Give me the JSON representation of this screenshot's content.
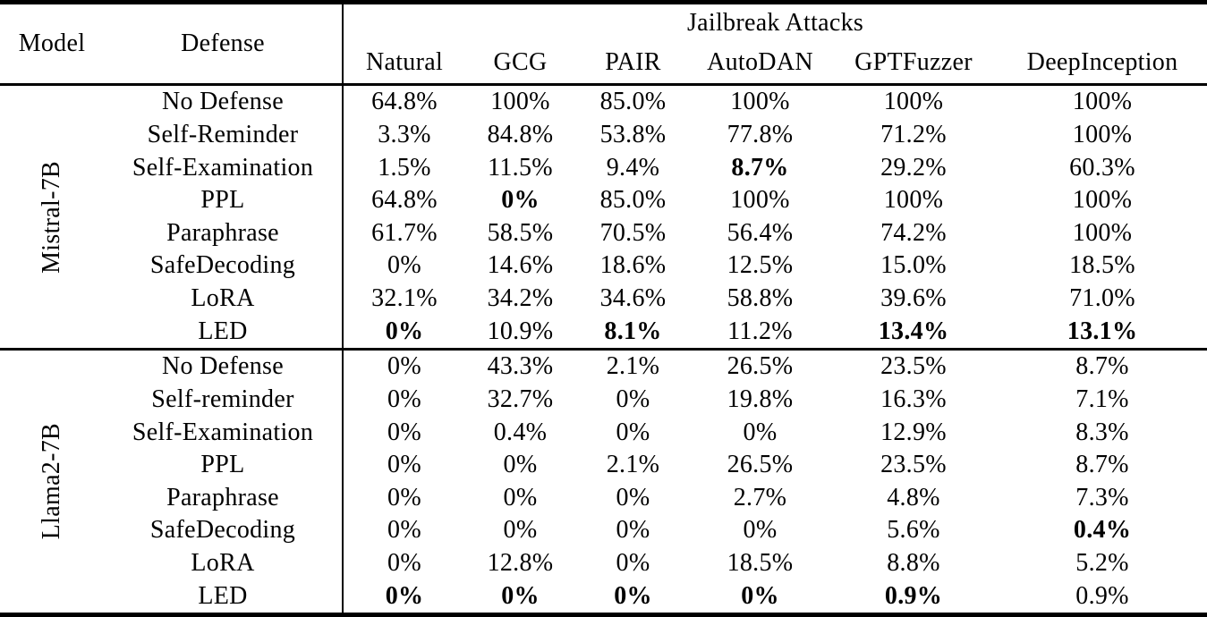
{
  "table": {
    "headers": {
      "model": "Model",
      "defense": "Defense",
      "attack_group": "Jailbreak Attacks",
      "attacks": [
        "Natural",
        "GCG",
        "PAIR",
        "AutoDAN",
        "GPTFuzzer",
        "DeepInception"
      ]
    },
    "colors": {
      "text": "#000000",
      "background": "#ffffff",
      "rule": "#000000"
    },
    "sections": [
      {
        "model": "Mistral-7B",
        "rows": [
          {
            "defense": "No Defense",
            "values": [
              {
                "text": "64.8%",
                "bold": false
              },
              {
                "text": "100%",
                "bold": false
              },
              {
                "text": "85.0%",
                "bold": false
              },
              {
                "text": "100%",
                "bold": false
              },
              {
                "text": "100%",
                "bold": false
              },
              {
                "text": "100%",
                "bold": false
              }
            ]
          },
          {
            "defense": "Self-Reminder",
            "values": [
              {
                "text": "3.3%",
                "bold": false
              },
              {
                "text": "84.8%",
                "bold": false
              },
              {
                "text": "53.8%",
                "bold": false
              },
              {
                "text": "77.8%",
                "bold": false
              },
              {
                "text": "71.2%",
                "bold": false
              },
              {
                "text": "100%",
                "bold": false
              }
            ]
          },
          {
            "defense": "Self-Examination",
            "values": [
              {
                "text": "1.5%",
                "bold": false
              },
              {
                "text": "11.5%",
                "bold": false
              },
              {
                "text": "9.4%",
                "bold": false
              },
              {
                "text": "8.7%",
                "bold": true
              },
              {
                "text": "29.2%",
                "bold": false
              },
              {
                "text": "60.3%",
                "bold": false
              }
            ]
          },
          {
            "defense": "PPL",
            "values": [
              {
                "text": "64.8%",
                "bold": false
              },
              {
                "text": "0%",
                "bold": true
              },
              {
                "text": "85.0%",
                "bold": false
              },
              {
                "text": "100%",
                "bold": false
              },
              {
                "text": "100%",
                "bold": false
              },
              {
                "text": "100%",
                "bold": false
              }
            ]
          },
          {
            "defense": "Paraphrase",
            "values": [
              {
                "text": "61.7%",
                "bold": false
              },
              {
                "text": "58.5%",
                "bold": false
              },
              {
                "text": "70.5%",
                "bold": false
              },
              {
                "text": "56.4%",
                "bold": false
              },
              {
                "text": "74.2%",
                "bold": false
              },
              {
                "text": "100%",
                "bold": false
              }
            ]
          },
          {
            "defense": "SafeDecoding",
            "values": [
              {
                "text": "0%",
                "bold": false
              },
              {
                "text": "14.6%",
                "bold": false
              },
              {
                "text": "18.6%",
                "bold": false
              },
              {
                "text": "12.5%",
                "bold": false
              },
              {
                "text": "15.0%",
                "bold": false
              },
              {
                "text": "18.5%",
                "bold": false
              }
            ]
          },
          {
            "defense": "LoRA",
            "values": [
              {
                "text": "32.1%",
                "bold": false
              },
              {
                "text": "34.2%",
                "bold": false
              },
              {
                "text": "34.6%",
                "bold": false
              },
              {
                "text": "58.8%",
                "bold": false
              },
              {
                "text": "39.6%",
                "bold": false
              },
              {
                "text": "71.0%",
                "bold": false
              }
            ]
          },
          {
            "defense": "LED",
            "values": [
              {
                "text": "0%",
                "bold": true
              },
              {
                "text": "10.9%",
                "bold": false
              },
              {
                "text": "8.1%",
                "bold": true
              },
              {
                "text": "11.2%",
                "bold": false
              },
              {
                "text": "13.4%",
                "bold": true
              },
              {
                "text": "13.1%",
                "bold": true
              }
            ]
          }
        ]
      },
      {
        "model": "Llama2-7B",
        "rows": [
          {
            "defense": "No Defense",
            "values": [
              {
                "text": "0%",
                "bold": false
              },
              {
                "text": "43.3%",
                "bold": false
              },
              {
                "text": "2.1%",
                "bold": false
              },
              {
                "text": "26.5%",
                "bold": false
              },
              {
                "text": "23.5%",
                "bold": false
              },
              {
                "text": "8.7%",
                "bold": false
              }
            ]
          },
          {
            "defense": "Self-reminder",
            "values": [
              {
                "text": "0%",
                "bold": false
              },
              {
                "text": "32.7%",
                "bold": false
              },
              {
                "text": "0%",
                "bold": false
              },
              {
                "text": "19.8%",
                "bold": false
              },
              {
                "text": "16.3%",
                "bold": false
              },
              {
                "text": "7.1%",
                "bold": false
              }
            ]
          },
          {
            "defense": "Self-Examination",
            "values": [
              {
                "text": "0%",
                "bold": false
              },
              {
                "text": "0.4%",
                "bold": false
              },
              {
                "text": "0%",
                "bold": false
              },
              {
                "text": "0%",
                "bold": false
              },
              {
                "text": "12.9%",
                "bold": false
              },
              {
                "text": "8.3%",
                "bold": false
              }
            ]
          },
          {
            "defense": "PPL",
            "values": [
              {
                "text": "0%",
                "bold": false
              },
              {
                "text": "0%",
                "bold": false
              },
              {
                "text": "2.1%",
                "bold": false
              },
              {
                "text": "26.5%",
                "bold": false
              },
              {
                "text": "23.5%",
                "bold": false
              },
              {
                "text": "8.7%",
                "bold": false
              }
            ]
          },
          {
            "defense": "Paraphrase",
            "values": [
              {
                "text": "0%",
                "bold": false
              },
              {
                "text": "0%",
                "bold": false
              },
              {
                "text": "0%",
                "bold": false
              },
              {
                "text": "2.7%",
                "bold": false
              },
              {
                "text": "4.8%",
                "bold": false
              },
              {
                "text": "7.3%",
                "bold": false
              }
            ]
          },
          {
            "defense": "SafeDecoding",
            "values": [
              {
                "text": "0%",
                "bold": false
              },
              {
                "text": "0%",
                "bold": false
              },
              {
                "text": "0%",
                "bold": false
              },
              {
                "text": "0%",
                "bold": false
              },
              {
                "text": "5.6%",
                "bold": false
              },
              {
                "text": "0.4%",
                "bold": true
              }
            ]
          },
          {
            "defense": "LoRA",
            "values": [
              {
                "text": "0%",
                "bold": false
              },
              {
                "text": "12.8%",
                "bold": false
              },
              {
                "text": "0%",
                "bold": false
              },
              {
                "text": "18.5%",
                "bold": false
              },
              {
                "text": "8.8%",
                "bold": false
              },
              {
                "text": "5.2%",
                "bold": false
              }
            ]
          },
          {
            "defense": "LED",
            "values": [
              {
                "text": "0%",
                "bold": true
              },
              {
                "text": "0%",
                "bold": true
              },
              {
                "text": "0%",
                "bold": true
              },
              {
                "text": "0%",
                "bold": true
              },
              {
                "text": "0.9%",
                "bold": true
              },
              {
                "text": "0.9%",
                "bold": false
              }
            ]
          }
        ]
      }
    ]
  }
}
